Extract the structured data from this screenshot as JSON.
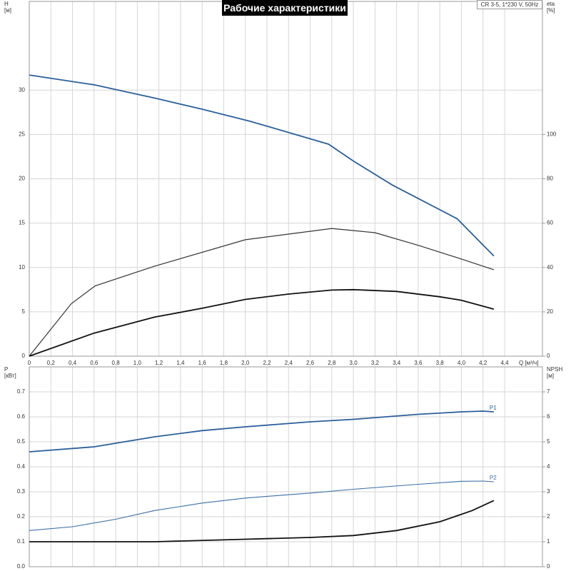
{
  "chart_data": [
    {
      "type": "line",
      "title": "Рабочие характеристики",
      "subtitle": "CR 3-5, 1*230 V, 50Hz",
      "xlabel": "Q [м³/ч]",
      "ylabel": "H",
      "ylabel_unit": "[м]",
      "y2label": "eta",
      "y2label_unit": "[%]",
      "xlim": [
        0,
        4.75
      ],
      "xticks": [
        0,
        {
          "value": 0.2,
          "label": "0,2"
        },
        {
          "value": 0.4,
          "label": "0,4"
        },
        {
          "value": 0.6,
          "label": "0,6"
        },
        {
          "value": 0.8,
          "label": "0,8"
        },
        {
          "value": 1.0,
          "label": "1,0"
        },
        {
          "value": 1.2,
          "label": "1,2"
        },
        {
          "value": 1.4,
          "label": "1,4"
        },
        {
          "value": 1.6,
          "label": "1,6"
        },
        {
          "value": 1.8,
          "label": "1,8"
        },
        {
          "value": 2.0,
          "label": "2,0"
        },
        {
          "value": 2.2,
          "label": "2,2"
        },
        {
          "value": 2.4,
          "label": "2,4"
        },
        {
          "value": 2.6,
          "label": "2,6"
        },
        {
          "value": 2.8,
          "label": "2,8"
        },
        {
          "value": 3.0,
          "label": "3,0"
        },
        {
          "value": 3.2,
          "label": "3,2"
        },
        {
          "value": 3.4,
          "label": "3,4"
        },
        {
          "value": 3.6,
          "label": "3,6"
        },
        {
          "value": 3.8,
          "label": "3,8"
        },
        {
          "value": 4.0,
          "label": "4,0"
        },
        {
          "value": 4.2,
          "label": "4,2"
        },
        {
          "value": 4.4,
          "label": "4,4"
        }
      ],
      "ylim": [
        0,
        40
      ],
      "yticks": [
        0,
        5,
        10,
        15,
        20,
        25,
        30
      ],
      "y2lim": [
        0,
        160
      ],
      "y2ticks": [
        0,
        20,
        40,
        60,
        80,
        100
      ],
      "grid": true,
      "series": [
        {
          "color": "#2a5f9a",
          "line_width": 1.8,
          "x": [
            0,
            0.6,
            1.16,
            1.58,
            2.04,
            2.77,
            3.0,
            3.36,
            3.96,
            4.3
          ],
          "values": [
            31.7,
            30.6,
            29.1,
            27.9,
            26.5,
            23.9,
            22.0,
            19.3,
            15.5,
            11.3
          ]
        },
        {
          "color": "#333333",
          "line_width": 1.2,
          "axis": "y2",
          "x": [
            0,
            0.39,
            0.61,
            1.16,
            2.0,
            2.8,
            3.2,
            3.6,
            4.0,
            4.3
          ],
          "values": [
            0,
            23.7,
            31.7,
            40.6,
            52.5,
            57.6,
            55.7,
            50,
            43.8,
            39
          ]
        },
        {
          "color": "#111111",
          "line_width": 1.8,
          "axis": "y2",
          "x": [
            0,
            0.6,
            1.16,
            1.6,
            2.0,
            2.4,
            2.8,
            3.0,
            3.4,
            3.8,
            4.0,
            4.3
          ],
          "values": [
            0,
            10.4,
            17.6,
            21.6,
            25.6,
            28,
            29.8,
            30,
            29.2,
            26.8,
            25.2,
            21.2
          ]
        }
      ]
    },
    {
      "type": "line",
      "ylabel": "P",
      "ylabel_unit": "[кВт]",
      "y2label": "NPSH",
      "y2label_unit": "[м]",
      "xlim": [
        0,
        4.75
      ],
      "ylim": [
        0,
        0.8
      ],
      "yticks": [
        {
          "value": 0,
          "label": "0.0"
        },
        0.1,
        0.2,
        0.3,
        0.4,
        0.5,
        0.6,
        0.7
      ],
      "y2lim": [
        0,
        8
      ],
      "y2ticks": [
        0,
        1,
        2,
        3,
        4,
        5,
        6,
        7
      ],
      "grid": true,
      "series": [
        {
          "name": "P1",
          "color": "#2a5f9a",
          "line_width": 1.8,
          "x": [
            0,
            0.6,
            1.16,
            1.6,
            2.0,
            2.6,
            3.0,
            3.6,
            4.0,
            4.2,
            4.3
          ],
          "values": [
            0.46,
            0.48,
            0.52,
            0.545,
            0.56,
            0.58,
            0.59,
            0.61,
            0.62,
            0.623,
            0.62
          ]
        },
        {
          "name": "P2",
          "color": "#3a6ea5",
          "line_width": 1.1,
          "x": [
            0,
            0.4,
            0.8,
            1.16,
            1.6,
            2.0,
            2.6,
            3.0,
            3.6,
            4.0,
            4.2,
            4.3
          ],
          "values": [
            0.145,
            0.16,
            0.19,
            0.225,
            0.255,
            0.275,
            0.295,
            0.31,
            0.33,
            0.342,
            0.343,
            0.34
          ]
        },
        {
          "color": "#111111",
          "line_width": 1.8,
          "axis": "y2",
          "x": [
            0,
            1.16,
            2.0,
            2.6,
            3.0,
            3.4,
            3.8,
            4.1,
            4.3
          ],
          "values": [
            1.0,
            1.0,
            1.1,
            1.17,
            1.25,
            1.45,
            1.8,
            2.25,
            2.65
          ]
        }
      ]
    }
  ]
}
